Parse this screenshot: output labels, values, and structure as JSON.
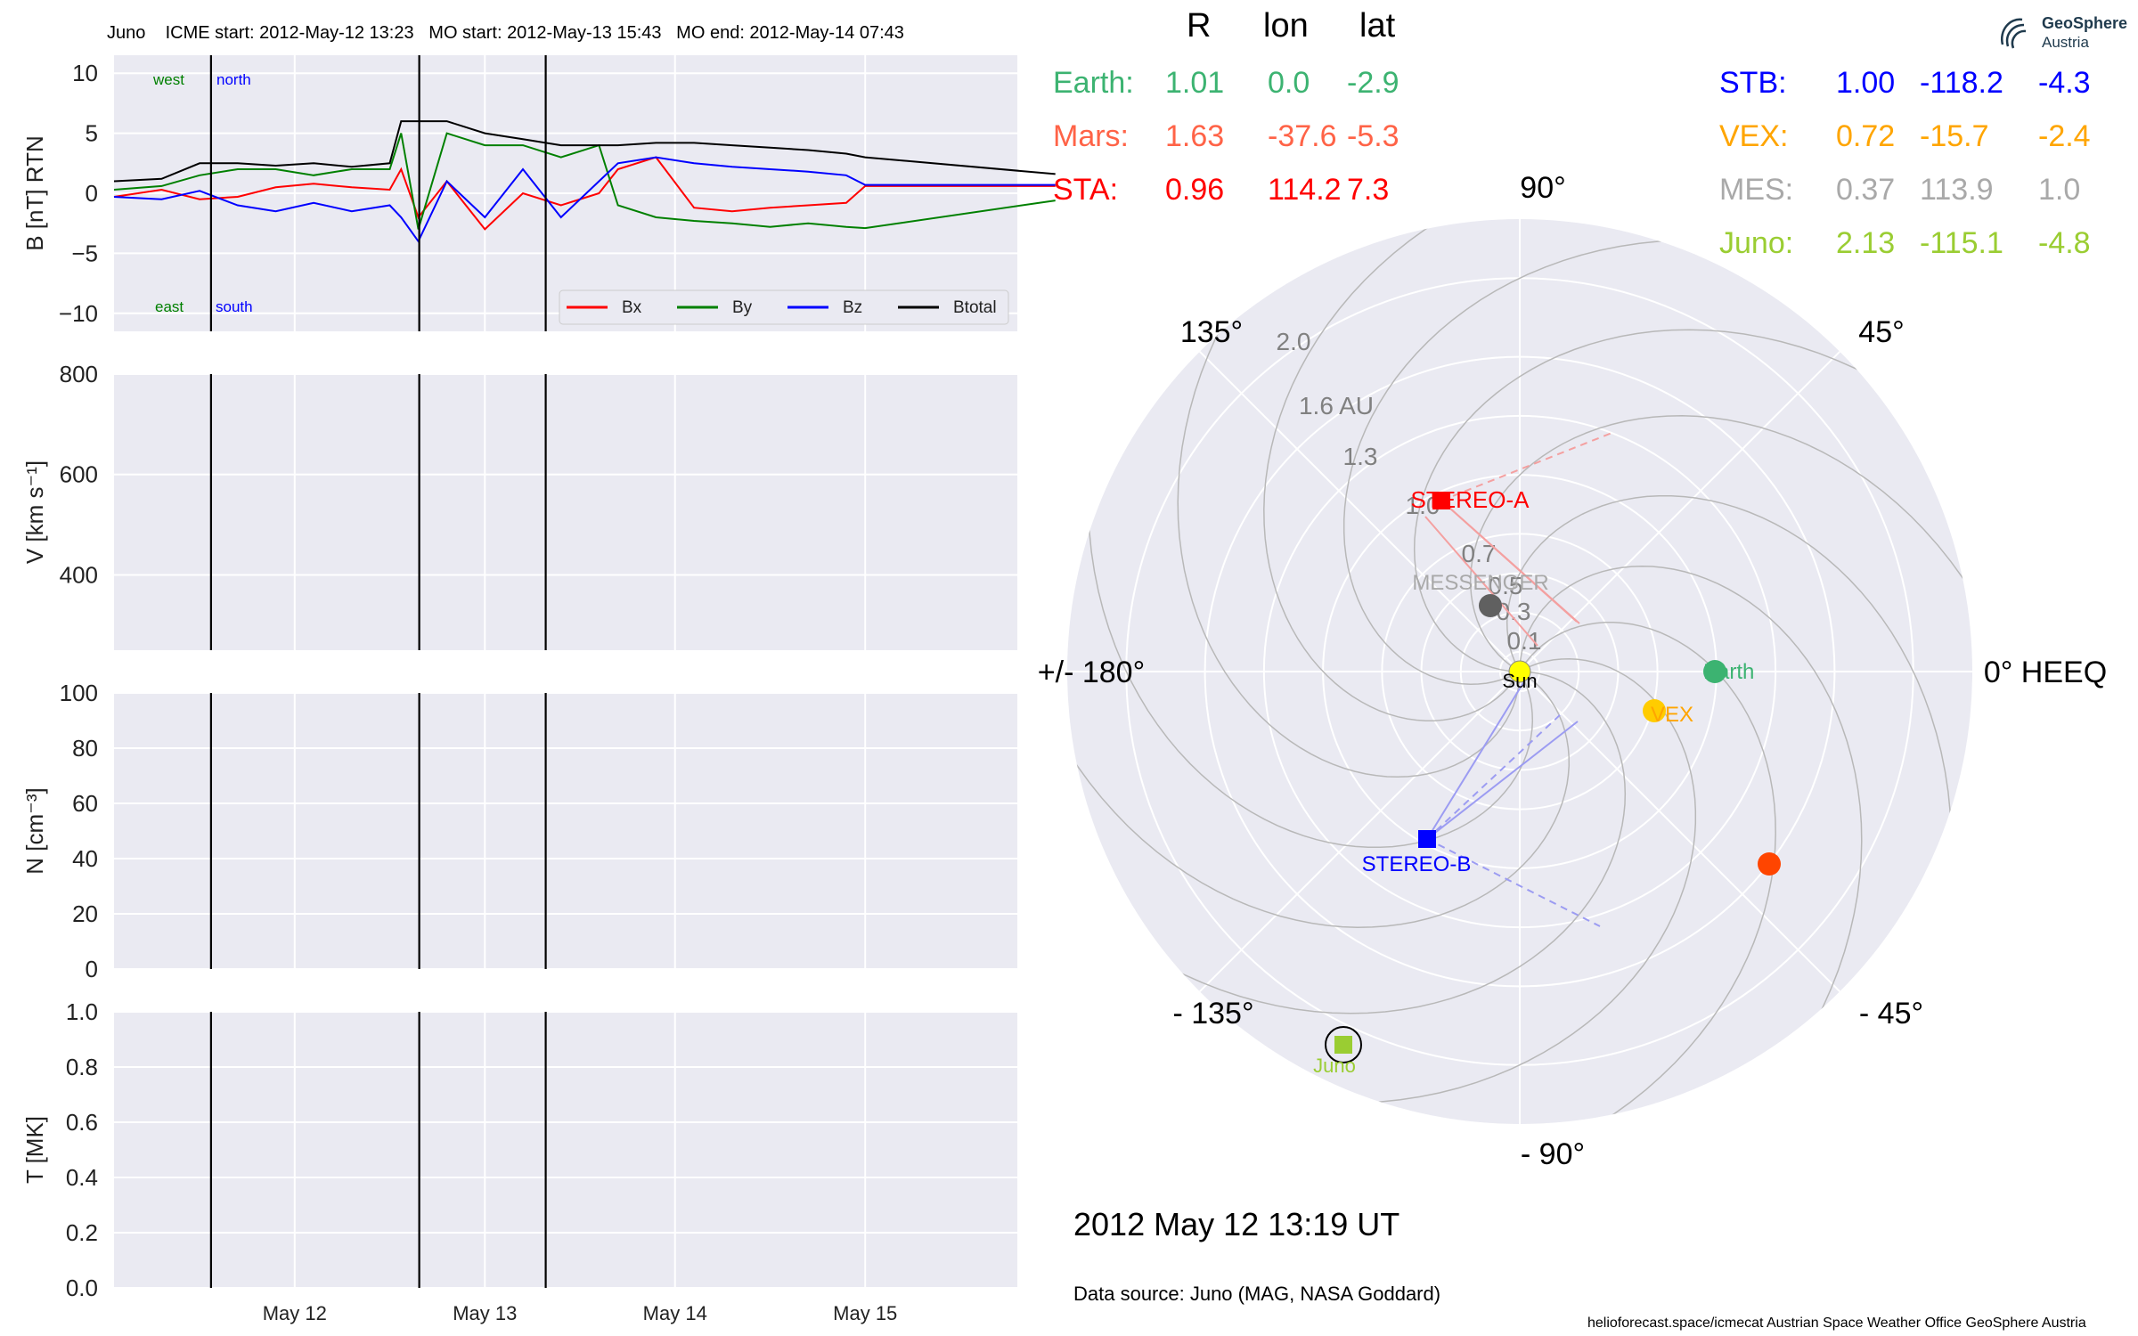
{
  "title_line": "Juno    ICME start: 2012-May-12 13:23   MO start: 2012-May-13 15:43   MO end: 2012-May-14 07:43",
  "header": {
    "r": "R",
    "lon": "lon",
    "lat": "lat"
  },
  "positions_left": [
    {
      "name": "Earth:",
      "r": "1.01",
      "lon": "0.0",
      "lat": "-2.9",
      "color": "#3cb371"
    },
    {
      "name": "Mars:",
      "r": "1.63",
      "lon": "-37.6",
      "lat": "-5.3",
      "color": "#ff6347"
    },
    {
      "name": "STA:",
      "r": "0.96",
      "lon": "114.2",
      "lat": "7.3",
      "color": "#ff0000"
    }
  ],
  "positions_right": [
    {
      "name": "STB:",
      "r": "1.00",
      "lon": "-118.2",
      "lat": "-4.3",
      "color": "#0000ff"
    },
    {
      "name": "VEX:",
      "r": "0.72",
      "lon": "-15.7",
      "lat": "-2.4",
      "color": "#ffa500"
    },
    {
      "name": "MES:",
      "r": "0.37",
      "lon": "113.9",
      "lat": "1.0",
      "color": "#a9a9a9"
    },
    {
      "name": "Juno:",
      "r": "2.13",
      "lon": "-115.1",
      "lat": "-4.8",
      "color": "#9acd32"
    }
  ],
  "date_text": "2012 May 12  13:19 UT",
  "source_text": "Data source: Juno (MAG, NASA Goddard)",
  "footer_text": "helioforecast.space/icmecat   Austrian Space Weather Office   GeoSphere Austria",
  "logo": {
    "name": "GeoSphere",
    "sub": "Austria"
  },
  "colors": {
    "bg": "#eaeaf2",
    "grid": "#ffffff",
    "bx": "#ff0000",
    "by": "#008000",
    "bz": "#0000ff",
    "bt": "#000000"
  },
  "chart_data": [
    {
      "type": "line",
      "ylabel": "B [nT] RTN",
      "ylim": [
        -11.5,
        11.5
      ],
      "yticks": [
        10,
        5,
        0,
        -5,
        -10
      ],
      "xticks": [
        "May 12",
        "May 13",
        "May 14",
        "May 15"
      ],
      "events": [
        "ICME start 2012-May-12 13:23",
        "MO start 2012-May-13 15:43",
        "MO end 2012-May-14 07:43"
      ],
      "annotations": {
        "top_left": "west",
        "top_right": "north",
        "bottom_left": "east",
        "bottom_right": "south"
      },
      "legend": "bottom-right",
      "series": [
        {
          "name": "Bx",
          "color": "#ff0000",
          "x": [
            11.05,
            11.3,
            11.5,
            11.7,
            11.9,
            12.1,
            12.3,
            12.5,
            12.56,
            12.65,
            12.8,
            13.0,
            13.2,
            13.4,
            13.6,
            13.7,
            13.9,
            14.1,
            14.3,
            14.5,
            14.7,
            14.9,
            15.0,
            16.0
          ],
          "y": [
            -0.3,
            0.3,
            -0.5,
            -0.3,
            0.5,
            0.8,
            0.5,
            0.3,
            2,
            -2,
            1,
            -3,
            0,
            -1,
            0,
            2,
            3,
            -1.2,
            -1.5,
            -1.2,
            -1,
            -0.8,
            0.6,
            0.6
          ]
        },
        {
          "name": "By",
          "color": "#008000",
          "x": [
            11.05,
            11.3,
            11.5,
            11.7,
            11.9,
            12.1,
            12.3,
            12.5,
            12.56,
            12.65,
            12.8,
            13.0,
            13.2,
            13.4,
            13.6,
            13.7,
            13.9,
            14.1,
            14.3,
            14.5,
            14.7,
            14.9,
            15.0,
            16.0
          ],
          "y": [
            0.3,
            0.6,
            1.5,
            2.0,
            2.0,
            1.5,
            2.0,
            2.0,
            5,
            -3,
            5,
            4,
            4,
            3,
            4,
            -1,
            -2,
            -2.3,
            -2.5,
            -2.8,
            -2.5,
            -2.8,
            -2.9,
            -0.6
          ]
        },
        {
          "name": "Bz",
          "color": "#0000ff",
          "x": [
            11.05,
            11.3,
            11.5,
            11.7,
            11.9,
            12.1,
            12.3,
            12.5,
            12.56,
            12.65,
            12.8,
            13.0,
            13.2,
            13.4,
            13.6,
            13.7,
            13.9,
            14.1,
            14.3,
            14.5,
            14.7,
            14.9,
            15.0,
            16.0
          ],
          "y": [
            -0.3,
            -0.5,
            0.2,
            -1.0,
            -1.5,
            -0.8,
            -1.5,
            -1.0,
            -2,
            -4,
            1,
            -2,
            2,
            -2,
            1,
            2.5,
            3,
            2.5,
            2.2,
            2.0,
            1.8,
            1.5,
            0.7,
            0.7
          ]
        },
        {
          "name": "Btotal",
          "color": "#000000",
          "x": [
            11.05,
            11.3,
            11.5,
            11.7,
            11.9,
            12.1,
            12.3,
            12.5,
            12.56,
            12.65,
            12.8,
            13.0,
            13.2,
            13.4,
            13.6,
            13.7,
            13.9,
            14.1,
            14.3,
            14.5,
            14.7,
            14.9,
            15.0,
            16.0
          ],
          "y": [
            1.0,
            1.2,
            2.5,
            2.5,
            2.3,
            2.5,
            2.2,
            2.5,
            6,
            6,
            6,
            5,
            4.5,
            4,
            4,
            4,
            4.2,
            4.2,
            4.0,
            3.8,
            3.6,
            3.3,
            3.0,
            1.6
          ]
        }
      ]
    },
    {
      "type": "line",
      "ylabel": "V [km s⁻¹]",
      "ylim": [
        250,
        800
      ],
      "yticks": [
        800,
        600,
        400
      ],
      "series": []
    },
    {
      "type": "line",
      "ylabel": "N [cm⁻³]",
      "ylim": [
        0,
        100
      ],
      "yticks": [
        100,
        80,
        60,
        40,
        20,
        0
      ],
      "series": []
    },
    {
      "type": "line",
      "ylabel": "T [MK]",
      "ylim": [
        0,
        1.0
      ],
      "yticks": [
        "1.0",
        "0.8",
        "0.6",
        "0.4",
        "0.2",
        "0.0"
      ],
      "series": []
    },
    {
      "type": "scatter",
      "projection": "polar",
      "rticks": [
        "0.1",
        "0.3",
        "0.5",
        "0.7",
        "1.0",
        "1.3",
        "1.6 AU",
        "2.0"
      ],
      "angle_labels": [
        "0° HEEQ",
        "45°",
        "90°",
        "135°",
        "+/- 180°",
        "- 135°",
        "- 90°",
        "- 45°"
      ],
      "bodies": [
        {
          "name": "Sun",
          "r": 0,
          "lon": 0,
          "color": "#ffff00",
          "label": "Sun"
        },
        {
          "name": "Earth",
          "r": 1.01,
          "lon": 0.0,
          "color": "#3cb371",
          "label": "Earth"
        },
        {
          "name": "VEX",
          "r": 0.72,
          "lon": -15.7,
          "color": "#ffcc00",
          "label": "VEX"
        },
        {
          "name": "Mars",
          "r": 1.63,
          "lon": -37.6,
          "color": "#ff4500",
          "label": ""
        },
        {
          "name": "MESSENGER",
          "r": 0.37,
          "lon": 113.9,
          "color": "#606060",
          "label": "MESSENGER"
        },
        {
          "name": "STEREO-A",
          "r": 0.96,
          "lon": 114.2,
          "color": "#ff0000",
          "label": "STEREO-A"
        },
        {
          "name": "STEREO-B",
          "r": 1.0,
          "lon": -118.2,
          "color": "#0000ff",
          "label": "STEREO-B"
        },
        {
          "name": "Juno",
          "r": 2.13,
          "lon": -115.1,
          "color": "#9acd32",
          "label": "Juno"
        }
      ]
    }
  ]
}
